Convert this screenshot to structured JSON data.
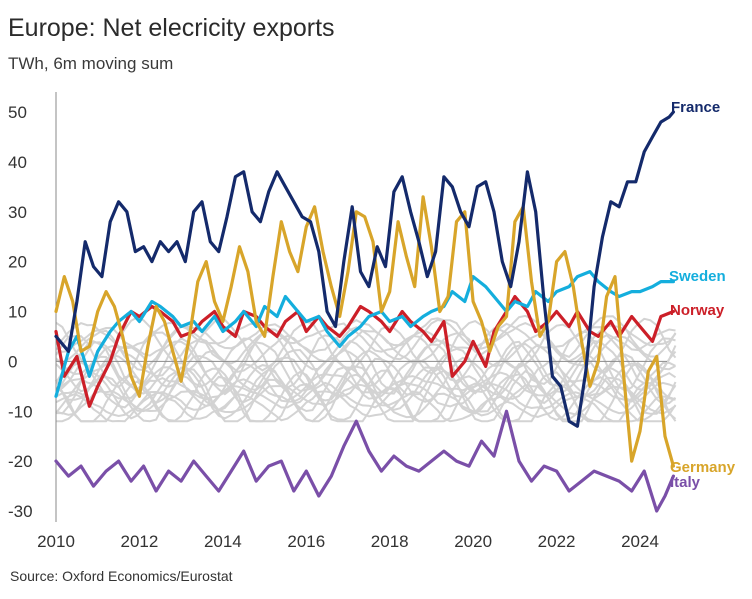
{
  "chart_data": {
    "type": "line",
    "title": "Europe: Net elecricity exports",
    "subtitle": "TWh, 6m moving sum",
    "source": "Source: Oxford Economics/Eurostat",
    "xlabel": "",
    "ylabel": "TWh",
    "xlim": [
      2010,
      2025
    ],
    "ylim": [
      -30,
      55
    ],
    "x_ticks": [
      "2010",
      "2012",
      "2014",
      "2016",
      "2018",
      "2020",
      "2022",
      "2024"
    ],
    "y_ticks": [
      "50",
      "40",
      "30",
      "20",
      "10",
      "0",
      "-10",
      "-20",
      "-30"
    ],
    "series": [
      {
        "name": "France",
        "color": "#142a6b",
        "x": [
          2010.0,
          2010.3,
          2010.5,
          2010.7,
          2010.9,
          2011.1,
          2011.3,
          2011.5,
          2011.7,
          2011.9,
          2012.1,
          2012.3,
          2012.5,
          2012.7,
          2012.9,
          2013.1,
          2013.3,
          2013.5,
          2013.7,
          2013.9,
          2014.1,
          2014.3,
          2014.5,
          2014.7,
          2014.9,
          2015.1,
          2015.3,
          2015.5,
          2015.7,
          2015.9,
          2016.1,
          2016.3,
          2016.5,
          2016.7,
          2016.9,
          2017.1,
          2017.3,
          2017.5,
          2017.7,
          2017.9,
          2018.1,
          2018.3,
          2018.5,
          2018.7,
          2018.9,
          2019.1,
          2019.3,
          2019.5,
          2019.7,
          2019.9,
          2020.1,
          2020.3,
          2020.5,
          2020.7,
          2020.9,
          2021.1,
          2021.3,
          2021.5,
          2021.7,
          2021.9,
          2022.1,
          2022.3,
          2022.5,
          2022.7,
          2022.9,
          2023.1,
          2023.3,
          2023.5,
          2023.7,
          2023.9,
          2024.1,
          2024.3,
          2024.5,
          2024.7,
          2024.8
        ],
        "values": [
          5,
          2,
          12,
          24,
          19,
          17,
          28,
          32,
          30,
          22,
          23,
          20,
          24,
          22,
          24,
          20,
          30,
          32,
          24,
          22,
          29,
          37,
          38,
          30,
          28,
          34,
          38,
          35,
          32,
          29,
          28,
          22,
          10,
          7,
          20,
          31,
          18,
          15,
          23,
          19,
          34,
          37,
          30,
          24,
          17,
          22,
          37,
          35,
          30,
          27,
          35,
          36,
          30,
          20,
          15,
          24,
          38,
          30,
          12,
          -3,
          -5,
          -12,
          -13,
          -2,
          15,
          25,
          32,
          31,
          36,
          36,
          42,
          45,
          48,
          49,
          50
        ]
      },
      {
        "name": "Sweden",
        "color": "#14aedd",
        "x": [
          2010.0,
          2010.3,
          2010.5,
          2010.8,
          2011.0,
          2011.3,
          2011.5,
          2011.8,
          2012.0,
          2012.3,
          2012.5,
          2012.8,
          2013.0,
          2013.3,
          2013.5,
          2013.8,
          2014.0,
          2014.3,
          2014.5,
          2014.8,
          2015.0,
          2015.3,
          2015.5,
          2015.8,
          2016.0,
          2016.3,
          2016.5,
          2016.8,
          2017.0,
          2017.3,
          2017.5,
          2017.8,
          2018.0,
          2018.3,
          2018.5,
          2018.8,
          2019.0,
          2019.3,
          2019.5,
          2019.8,
          2020.0,
          2020.3,
          2020.5,
          2020.8,
          2021.0,
          2021.3,
          2021.5,
          2021.8,
          2022.0,
          2022.3,
          2022.5,
          2022.8,
          2023.0,
          2023.3,
          2023.5,
          2023.8,
          2024.0,
          2024.3,
          2024.5,
          2024.8
        ],
        "values": [
          -7,
          2,
          5,
          -3,
          2,
          6,
          8,
          10,
          8,
          12,
          11,
          9,
          7,
          8,
          6,
          9,
          6,
          8,
          10,
          7,
          11,
          9,
          13,
          10,
          8,
          9,
          6,
          3,
          5,
          7,
          9,
          10,
          8,
          9,
          7,
          9,
          10,
          11,
          14,
          12,
          17,
          15,
          13,
          10,
          12,
          11,
          14,
          12,
          14,
          15,
          17,
          18,
          16,
          14,
          13,
          14,
          14,
          15,
          16,
          16
        ]
      },
      {
        "name": "Norway",
        "color": "#cc1f28",
        "x": [
          2010.0,
          2010.2,
          2010.5,
          2010.8,
          2011.0,
          2011.3,
          2011.5,
          2011.8,
          2012.0,
          2012.3,
          2012.5,
          2012.8,
          2013.0,
          2013.3,
          2013.5,
          2013.8,
          2014.0,
          2014.3,
          2014.5,
          2014.8,
          2015.0,
          2015.3,
          2015.5,
          2015.8,
          2016.0,
          2016.3,
          2016.5,
          2016.8,
          2017.0,
          2017.3,
          2017.5,
          2017.8,
          2018.0,
          2018.3,
          2018.5,
          2018.8,
          2019.0,
          2019.3,
          2019.5,
          2019.8,
          2020.0,
          2020.3,
          2020.5,
          2020.8,
          2021.0,
          2021.3,
          2021.5,
          2021.8,
          2022.0,
          2022.3,
          2022.5,
          2022.8,
          2023.0,
          2023.3,
          2023.5,
          2023.8,
          2024.0,
          2024.3,
          2024.5,
          2024.8
        ],
        "values": [
          6,
          -3,
          1,
          -9,
          -5,
          0,
          5,
          10,
          9,
          11,
          10,
          8,
          5,
          6,
          8,
          10,
          7,
          5,
          10,
          9,
          7,
          5,
          8,
          10,
          6,
          9,
          7,
          5,
          7,
          11,
          10,
          8,
          6,
          10,
          8,
          6,
          4,
          8,
          -3,
          0,
          4,
          -1,
          6,
          10,
          13,
          10,
          6,
          8,
          10,
          7,
          10,
          6,
          5,
          8,
          5,
          9,
          7,
          4,
          9,
          10
        ]
      },
      {
        "name": "Germany",
        "color": "#d8a52a",
        "x": [
          2010.0,
          2010.2,
          2010.4,
          2010.6,
          2010.8,
          2011.0,
          2011.2,
          2011.4,
          2011.6,
          2011.8,
          2012.0,
          2012.2,
          2012.4,
          2012.6,
          2012.8,
          2013.0,
          2013.2,
          2013.4,
          2013.6,
          2013.8,
          2014.0,
          2014.2,
          2014.4,
          2014.6,
          2014.8,
          2015.0,
          2015.2,
          2015.4,
          2015.6,
          2015.8,
          2016.0,
          2016.2,
          2016.4,
          2016.6,
          2016.8,
          2017.0,
          2017.2,
          2017.4,
          2017.6,
          2017.8,
          2018.0,
          2018.2,
          2018.4,
          2018.6,
          2018.8,
          2019.0,
          2019.2,
          2019.4,
          2019.6,
          2019.8,
          2020.0,
          2020.2,
          2020.4,
          2020.6,
          2020.8,
          2021.0,
          2021.2,
          2021.4,
          2021.6,
          2021.8,
          2022.0,
          2022.2,
          2022.4,
          2022.6,
          2022.8,
          2023.0,
          2023.2,
          2023.4,
          2023.6,
          2023.8,
          2024.0,
          2024.2,
          2024.4,
          2024.6,
          2024.8
        ],
        "values": [
          10,
          17,
          12,
          2,
          3,
          10,
          14,
          11,
          5,
          -3,
          -7,
          3,
          11,
          8,
          2,
          -4,
          5,
          16,
          20,
          12,
          8,
          15,
          23,
          18,
          8,
          5,
          17,
          28,
          22,
          18,
          27,
          31,
          22,
          15,
          9,
          18,
          30,
          29,
          24,
          10,
          14,
          28,
          21,
          15,
          33,
          23,
          10,
          13,
          28,
          30,
          12,
          8,
          2,
          7,
          9,
          28,
          31,
          16,
          5,
          8,
          20,
          22,
          15,
          4,
          -5,
          0,
          13,
          17,
          -2,
          -20,
          -14,
          -2,
          1,
          -15,
          -21
        ]
      },
      {
        "name": "Italy",
        "color": "#7a4fa8",
        "x": [
          2010.0,
          2010.3,
          2010.6,
          2010.9,
          2011.2,
          2011.5,
          2011.8,
          2012.1,
          2012.4,
          2012.7,
          2013.0,
          2013.3,
          2013.6,
          2013.9,
          2014.2,
          2014.5,
          2014.8,
          2015.1,
          2015.4,
          2015.7,
          2016.0,
          2016.3,
          2016.6,
          2016.9,
          2017.2,
          2017.5,
          2017.8,
          2018.1,
          2018.4,
          2018.7,
          2019.0,
          2019.3,
          2019.6,
          2019.9,
          2020.2,
          2020.5,
          2020.8,
          2021.1,
          2021.4,
          2021.7,
          2022.0,
          2022.3,
          2022.6,
          2022.9,
          2023.2,
          2023.5,
          2023.8,
          2024.1,
          2024.4,
          2024.6,
          2024.8
        ],
        "values": [
          -20,
          -23,
          -21,
          -25,
          -22,
          -20,
          -24,
          -21,
          -26,
          -22,
          -24,
          -20,
          -23,
          -26,
          -22,
          -18,
          -24,
          -21,
          -20,
          -26,
          -22,
          -27,
          -23,
          -17,
          -12,
          -18,
          -22,
          -19,
          -21,
          -22,
          -20,
          -18,
          -20,
          -21,
          -16,
          -19,
          -10,
          -20,
          -24,
          -21,
          -22,
          -26,
          -24,
          -22,
          -23,
          -24,
          -26,
          -22,
          -30,
          -27,
          -23
        ]
      }
    ],
    "background_series_count": 20
  }
}
